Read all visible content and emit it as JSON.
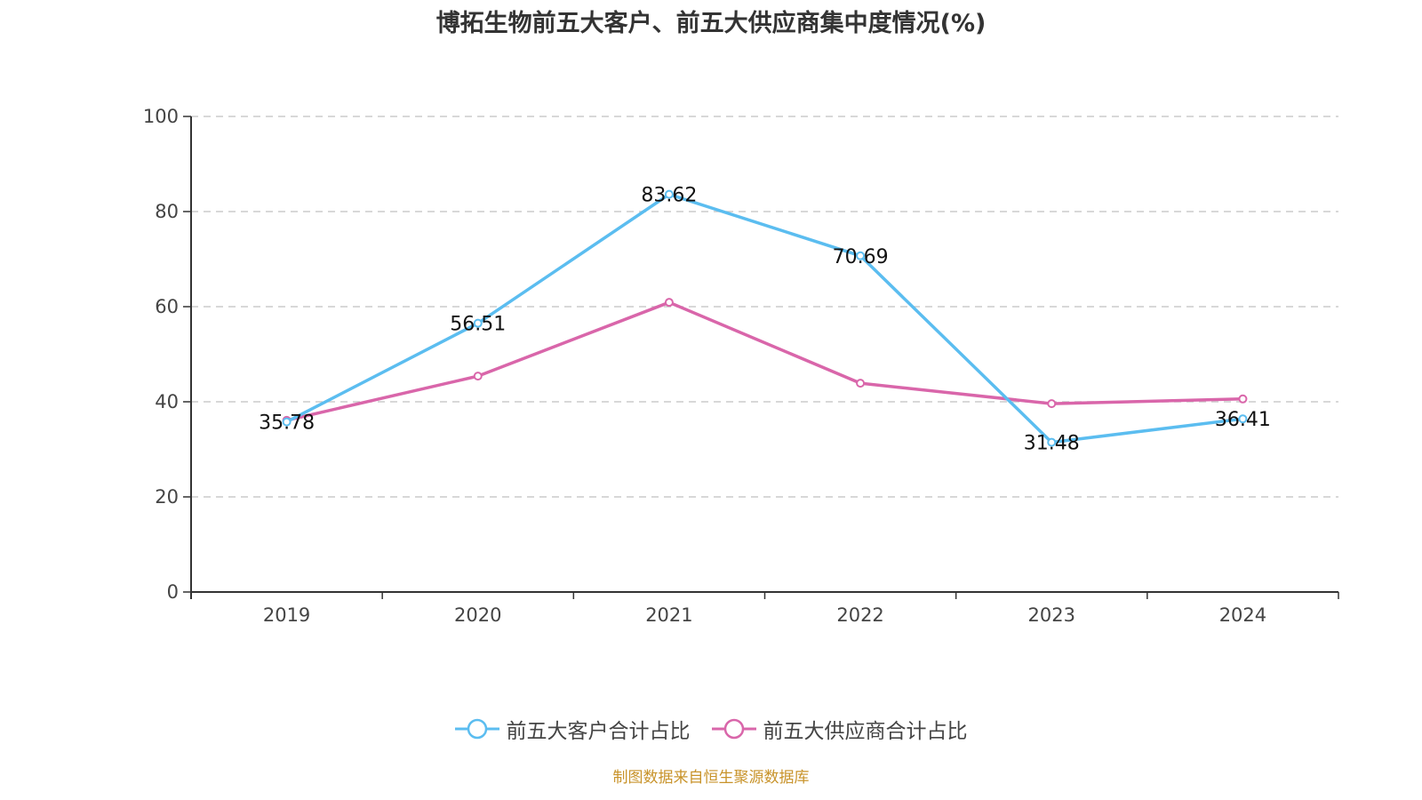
{
  "chart_data": {
    "type": "line",
    "title": "博拓生物前五大客户、前五大供应商集中度情况(%)",
    "xlabel": "",
    "ylabel": "",
    "categories": [
      "2019",
      "2020",
      "2021",
      "2022",
      "2023",
      "2024"
    ],
    "ylim": [
      0,
      100
    ],
    "yticks": [
      "0",
      "20",
      "40",
      "60",
      "80",
      "100"
    ],
    "grid": true,
    "legend_position": "bottom",
    "series": [
      {
        "name": "前五大客户合计占比",
        "color": "#5bbdf0",
        "values": [
          35.78,
          56.51,
          83.62,
          70.69,
          31.48,
          36.41
        ],
        "labels": [
          "35.78",
          "56.51",
          "83.62",
          "70.69",
          "31.48",
          "36.41"
        ]
      },
      {
        "name": "前五大供应商合计占比",
        "color": "#d966aa",
        "values": [
          36.1,
          45.4,
          60.9,
          43.9,
          39.6,
          40.6
        ],
        "labels": []
      }
    ]
  },
  "footer": {
    "source": "制图数据来自恒生聚源数据库"
  }
}
